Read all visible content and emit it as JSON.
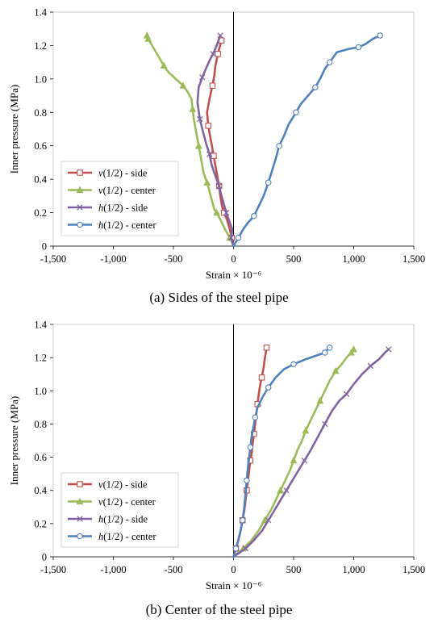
{
  "charts": [
    {
      "caption": "(a) Sides of the steel pipe",
      "ylabel": "Inner pressure (MPa)",
      "xlabel": "Strain × 10⁻⁶",
      "xticks": [
        "-1,500",
        "-1,000",
        "-500",
        "0",
        "500",
        "1,000",
        "1,500"
      ],
      "yticks": [
        "0",
        "0.2",
        "0.4",
        "0.6",
        "0.8",
        "1.0",
        "1.2",
        "1.4"
      ]
    },
    {
      "caption": "(b) Center of the steel pipe",
      "ylabel": "Inner pressure (MPa)",
      "xlabel": "Strain × 10⁻⁶",
      "xticks": [
        "-1,500",
        "-1,000",
        "-500",
        "0",
        "500",
        "1,000",
        "1,500"
      ],
      "yticks": [
        "0",
        "0.2",
        "0.4",
        "0.6",
        "0.8",
        "1.0",
        "1.2",
        "1.4"
      ]
    }
  ],
  "chart_data": [
    {
      "type": "line",
      "xlabel": "Strain × 10⁻⁶",
      "ylabel": "Inner pressure (MPa)",
      "xlim": [
        -1500,
        1500
      ],
      "ylim": [
        0,
        1.4
      ],
      "grid": false,
      "legend_position": "bottom-left",
      "series": [
        {
          "name": "v(1/2) - side",
          "color": "#c0504d",
          "marker": "square",
          "x": [
            0,
            -15,
            -30,
            -55,
            -80,
            -95,
            -110,
            -120,
            -135,
            -150,
            -165,
            -180,
            -195,
            -210,
            -220,
            -200,
            -175,
            -160,
            -150,
            -130,
            -100
          ],
          "y": [
            0,
            0.05,
            0.1,
            0.16,
            0.2,
            0.24,
            0.3,
            0.36,
            0.42,
            0.48,
            0.54,
            0.6,
            0.66,
            0.72,
            0.8,
            0.88,
            0.96,
            1.02,
            1.08,
            1.15,
            1.23
          ]
        },
        {
          "name": "v(1/2) - center",
          "color": "#9bbb59",
          "marker": "triangle",
          "x": [
            0,
            -30,
            -70,
            -110,
            -140,
            -160,
            -190,
            -220,
            -250,
            -270,
            -290,
            -310,
            -330,
            -340,
            -350,
            -380,
            -420,
            -480,
            -540,
            -580,
            -620,
            -670,
            -710,
            -720
          ],
          "y": [
            0,
            0.05,
            0.1,
            0.16,
            0.2,
            0.22,
            0.3,
            0.38,
            0.44,
            0.52,
            0.6,
            0.68,
            0.76,
            0.82,
            0.88,
            0.92,
            0.96,
            1.0,
            1.04,
            1.08,
            1.13,
            1.19,
            1.24,
            1.26
          ]
        },
        {
          "name": "h(1/2) - side",
          "color": "#8064a2",
          "marker": "x",
          "x": [
            0,
            -20,
            -10,
            -40,
            -60,
            -80,
            -100,
            -120,
            -150,
            -180,
            -200,
            -230,
            -260,
            -280,
            -300,
            -290,
            -260,
            -230,
            -200,
            -170,
            -140,
            -110
          ],
          "y": [
            0,
            0.05,
            0.1,
            0.16,
            0.2,
            0.25,
            0.3,
            0.36,
            0.42,
            0.48,
            0.55,
            0.62,
            0.7,
            0.76,
            0.86,
            0.95,
            1.01,
            1.06,
            1.11,
            1.15,
            1.2,
            1.26
          ]
        },
        {
          "name": "h(1/2) - center",
          "color": "#4f81bd",
          "marker": "circle",
          "x": [
            0,
            40,
            80,
            120,
            170,
            210,
            250,
            290,
            320,
            350,
            380,
            420,
            460,
            520,
            560,
            620,
            680,
            720,
            760,
            800,
            860,
            960,
            1040,
            1100,
            1160,
            1220
          ],
          "y": [
            0,
            0.05,
            0.1,
            0.14,
            0.18,
            0.24,
            0.3,
            0.38,
            0.45,
            0.52,
            0.6,
            0.66,
            0.73,
            0.8,
            0.85,
            0.9,
            0.95,
            1.0,
            1.06,
            1.1,
            1.16,
            1.18,
            1.19,
            1.21,
            1.24,
            1.26
          ]
        }
      ]
    },
    {
      "type": "line",
      "xlabel": "Strain × 10⁻⁶",
      "ylabel": "Inner pressure (MPa)",
      "xlim": [
        -1500,
        1500
      ],
      "ylim": [
        0,
        1.4
      ],
      "grid": false,
      "legend_position": "bottom-left",
      "series": [
        {
          "name": "v(1/2) - side",
          "color": "#c0504d",
          "marker": "square",
          "x": [
            0,
            20,
            40,
            60,
            75,
            90,
            100,
            110,
            120,
            130,
            140,
            150,
            160,
            170,
            180,
            190,
            200,
            210,
            220,
            235,
            250,
            262,
            275
          ],
          "y": [
            0,
            0.05,
            0.1,
            0.16,
            0.22,
            0.28,
            0.34,
            0.4,
            0.46,
            0.52,
            0.58,
            0.62,
            0.68,
            0.74,
            0.8,
            0.86,
            0.92,
            0.98,
            1.03,
            1.08,
            1.14,
            1.2,
            1.26
          ]
        },
        {
          "name": "v(1/2) - center",
          "color": "#9bbb59",
          "marker": "triangle",
          "x": [
            0,
            80,
            150,
            210,
            260,
            310,
            350,
            390,
            430,
            470,
            500,
            530,
            570,
            600,
            640,
            680,
            720,
            760,
            800,
            850,
            900,
            940,
            980,
            1000
          ],
          "y": [
            0,
            0.05,
            0.1,
            0.16,
            0.22,
            0.28,
            0.34,
            0.4,
            0.46,
            0.52,
            0.58,
            0.64,
            0.7,
            0.76,
            0.82,
            0.88,
            0.94,
            1.0,
            1.06,
            1.12,
            1.16,
            1.2,
            1.23,
            1.25
          ]
        },
        {
          "name": "h(1/2) - side",
          "color": "#8064a2",
          "marker": "x",
          "x": [
            0,
            100,
            170,
            240,
            290,
            340,
            390,
            440,
            490,
            540,
            590,
            640,
            700,
            760,
            820,
            880,
            940,
            1000,
            1070,
            1140,
            1210,
            1260,
            1290
          ],
          "y": [
            0,
            0.05,
            0.1,
            0.16,
            0.22,
            0.28,
            0.34,
            0.4,
            0.46,
            0.52,
            0.58,
            0.64,
            0.72,
            0.8,
            0.88,
            0.94,
            0.98,
            1.04,
            1.1,
            1.15,
            1.19,
            1.23,
            1.25
          ]
        },
        {
          "name": "h(1/2) - center",
          "color": "#4f81bd",
          "marker": "circle",
          "x": [
            0,
            20,
            40,
            60,
            75,
            90,
            100,
            110,
            120,
            130,
            140,
            150,
            165,
            180,
            200,
            240,
            290,
            350,
            420,
            500,
            600,
            680,
            760,
            800
          ],
          "y": [
            0,
            0.05,
            0.1,
            0.16,
            0.22,
            0.3,
            0.38,
            0.46,
            0.54,
            0.6,
            0.66,
            0.72,
            0.78,
            0.84,
            0.9,
            0.96,
            1.02,
            1.08,
            1.13,
            1.16,
            1.19,
            1.21,
            1.23,
            1.26
          ]
        }
      ]
    }
  ]
}
